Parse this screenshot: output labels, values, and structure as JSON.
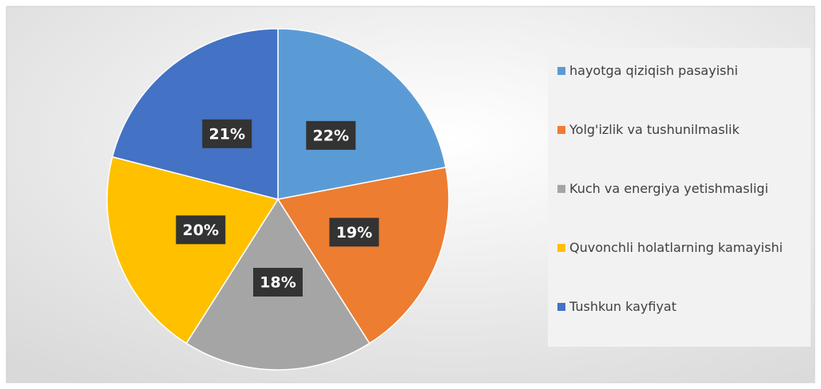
{
  "chart_data": {
    "type": "pie",
    "categories": [
      "hayotga qiziqish pasayishi",
      "Yolg'izlik va tushunilmaslik",
      "Kuch va energiya yetishmasligi",
      "Quvonchli holatlarning kamayishi",
      "Tushkun kayfiyat"
    ],
    "values": [
      22,
      19,
      18,
      20,
      21
    ],
    "value_labels": [
      "22%",
      "19%",
      "18%",
      "20%",
      "21%"
    ],
    "colors": [
      "#5b9bd5",
      "#ed7d31",
      "#a5a5a5",
      "#ffc000",
      "#4472c4"
    ],
    "legend": "right"
  }
}
